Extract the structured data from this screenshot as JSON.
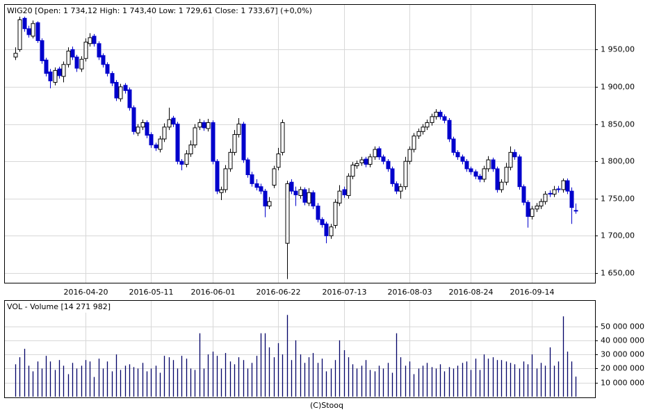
{
  "chart_data": [
    {
      "type": "candlestick",
      "title": "WIG20 [Open: 1 734,12  High: 1 743,40  Low: 1 729,61  Close: 1 733,67] (+0,0%)",
      "categories": [
        null,
        null,
        null,
        null,
        null,
        null,
        null,
        null,
        null,
        null,
        null,
        null,
        null,
        null,
        null,
        null,
        "2016-04-20",
        null,
        null,
        null,
        null,
        null,
        null,
        null,
        null,
        null,
        null,
        null,
        null,
        null,
        null,
        "2016-05-11",
        null,
        null,
        null,
        null,
        null,
        null,
        null,
        null,
        null,
        null,
        null,
        null,
        null,
        "2016-06-01",
        null,
        null,
        null,
        null,
        null,
        null,
        null,
        null,
        null,
        null,
        null,
        null,
        null,
        null,
        "2016-06-22",
        null,
        null,
        null,
        null,
        null,
        null,
        null,
        null,
        null,
        null,
        null,
        null,
        null,
        null,
        "2016-07-13",
        null,
        null,
        null,
        null,
        null,
        null,
        null,
        null,
        null,
        null,
        null,
        null,
        null,
        null,
        "2016-08-03",
        null,
        null,
        null,
        null,
        null,
        null,
        null,
        null,
        null,
        null,
        null,
        null,
        null,
        "2016-08-24",
        null,
        null,
        null,
        null,
        null,
        null,
        null,
        null,
        null,
        null,
        null,
        null,
        null,
        "2016-09-14",
        null,
        null,
        null,
        null,
        null,
        null,
        null,
        null,
        null,
        null
      ],
      "open": [
        1940,
        1950,
        1992,
        1978,
        1968,
        1986,
        1962,
        1936,
        1920,
        1906,
        1924,
        1914,
        1930,
        1950,
        1940,
        1924,
        1938,
        1958,
        1968,
        1958,
        1942,
        1930,
        1918,
        1906,
        1884,
        1902,
        1896,
        1872,
        1838,
        1846,
        1852,
        1836,
        1822,
        1816,
        1830,
        1846,
        1858,
        1850,
        1800,
        1796,
        1810,
        1822,
        1846,
        1852,
        1844,
        1852,
        1800,
        1758,
        1762,
        1790,
        1812,
        1836,
        1850,
        1802,
        1782,
        1770,
        1766,
        1760,
        1740,
        1768,
        1792,
        1812,
        1690,
        1772,
        1760,
        1754,
        1762,
        1744,
        1758,
        1740,
        1722,
        1716,
        1700,
        1714,
        1744,
        1762,
        1754,
        1780,
        1794,
        1798,
        1803,
        1796,
        1806,
        1817,
        1806,
        1800,
        1790,
        1770,
        1760,
        1766,
        1800,
        1816,
        1834,
        1840,
        1846,
        1852,
        1860,
        1866,
        1860,
        1855,
        1830,
        1812,
        1806,
        1800,
        1790,
        1786,
        1780,
        1776,
        1790,
        1802,
        1790,
        1762,
        1772,
        1792,
        1812,
        1806,
        1766,
        1745,
        1726,
        1736,
        1740,
        1746,
        1757,
        1756,
        1763,
        1762,
        1774,
        1760,
        1734.12
      ],
      "high": [
        1953,
        1995,
        1995,
        1982,
        1989,
        1988,
        1965,
        1939,
        1924,
        1926,
        1927,
        1934,
        1953,
        1954,
        1943,
        1941,
        1965,
        1972,
        1971,
        1961,
        1945,
        1933,
        1921,
        1909,
        1904,
        1905,
        1899,
        1875,
        1850,
        1856,
        1855,
        1839,
        1825,
        1834,
        1851,
        1872,
        1861,
        1853,
        1803,
        1815,
        1828,
        1850,
        1857,
        1855,
        1857,
        1855,
        1803,
        1766,
        1795,
        1817,
        1842,
        1858,
        1853,
        1805,
        1786,
        1776,
        1770,
        1763,
        1752,
        1794,
        1818,
        1856,
        1774,
        1776,
        1766,
        1766,
        1765,
        1764,
        1761,
        1744,
        1725,
        1719,
        1716,
        1749,
        1768,
        1766,
        1784,
        1799,
        1801,
        1806,
        1806,
        1810,
        1820,
        1820,
        1809,
        1803,
        1793,
        1773,
        1770,
        1806,
        1820,
        1838,
        1844,
        1850,
        1856,
        1864,
        1870,
        1869,
        1863,
        1858,
        1833,
        1815,
        1809,
        1803,
        1793,
        1789,
        1783,
        1794,
        1807,
        1805,
        1793,
        1776,
        1798,
        1820,
        1816,
        1809,
        1769,
        1748,
        1740,
        1744,
        1750,
        1760,
        1761,
        1767,
        1767,
        1777,
        1777,
        1765,
        1743.4
      ],
      "low": [
        1936,
        1947,
        1974,
        1966,
        1965,
        1959,
        1931,
        1914,
        1898,
        1902,
        1911,
        1906,
        1926,
        1936,
        1920,
        1920,
        1934,
        1954,
        1954,
        1936,
        1926,
        1914,
        1901,
        1881,
        1880,
        1891,
        1868,
        1836,
        1834,
        1842,
        1831,
        1818,
        1814,
        1812,
        1826,
        1842,
        1846,
        1796,
        1788,
        1792,
        1806,
        1818,
        1842,
        1841,
        1840,
        1796,
        1756,
        1748,
        1758,
        1786,
        1808,
        1832,
        1798,
        1778,
        1766,
        1761,
        1756,
        1725,
        1736,
        1764,
        1788,
        1808,
        1642,
        1756,
        1740,
        1750,
        1741,
        1740,
        1736,
        1718,
        1711,
        1690,
        1696,
        1710,
        1740,
        1751,
        1750,
        1776,
        1790,
        1794,
        1792,
        1792,
        1802,
        1802,
        1796,
        1786,
        1766,
        1756,
        1750,
        1762,
        1796,
        1812,
        1830,
        1836,
        1842,
        1848,
        1856,
        1856,
        1851,
        1826,
        1808,
        1802,
        1796,
        1786,
        1782,
        1776,
        1772,
        1772,
        1786,
        1786,
        1758,
        1758,
        1768,
        1788,
        1802,
        1762,
        1741,
        1711,
        1722,
        1732,
        1736,
        1742,
        1752,
        1752,
        1758,
        1758,
        1756,
        1716,
        1729.61
      ],
      "close": [
        1945,
        1990,
        1978,
        1970,
        1985,
        1962,
        1935,
        1918,
        1908,
        1922,
        1915,
        1930,
        1948,
        1940,
        1925,
        1937,
        1960,
        1966,
        1958,
        1940,
        1930,
        1918,
        1905,
        1885,
        1900,
        1895,
        1872,
        1840,
        1846,
        1852,
        1835,
        1822,
        1818,
        1830,
        1846,
        1856,
        1850,
        1800,
        1796,
        1810,
        1822,
        1845,
        1852,
        1845,
        1852,
        1800,
        1760,
        1762,
        1790,
        1812,
        1836,
        1850,
        1802,
        1782,
        1770,
        1765,
        1760,
        1740,
        1746,
        1790,
        1810,
        1852,
        1770,
        1760,
        1755,
        1762,
        1745,
        1758,
        1740,
        1722,
        1715,
        1700,
        1712,
        1745,
        1760,
        1755,
        1780,
        1795,
        1797,
        1802,
        1796,
        1806,
        1816,
        1806,
        1800,
        1790,
        1770,
        1760,
        1766,
        1800,
        1816,
        1834,
        1840,
        1846,
        1852,
        1860,
        1866,
        1860,
        1855,
        1830,
        1812,
        1806,
        1800,
        1790,
        1786,
        1780,
        1776,
        1790,
        1802,
        1790,
        1762,
        1772,
        1792,
        1812,
        1806,
        1766,
        1745,
        1726,
        1736,
        1740,
        1746,
        1756,
        1756,
        1762,
        1762,
        1774,
        1760,
        1738,
        1733.67
      ],
      "up_color": "#ffffff",
      "down_color": "#0000cc",
      "ylim": [
        1637,
        2010
      ],
      "yticks": [
        {
          "value": 1650,
          "label": "1 650,00"
        },
        {
          "value": 1700,
          "label": "1 700,00"
        },
        {
          "value": 1750,
          "label": "1 750,00"
        },
        {
          "value": 1800,
          "label": "1 800,00"
        },
        {
          "value": 1850,
          "label": "1 850,00"
        },
        {
          "value": 1900,
          "label": "1 900,00"
        },
        {
          "value": 1950,
          "label": "1 950,00"
        }
      ],
      "grid": true
    },
    {
      "type": "bar",
      "title": "VOL - Volume [14 271 982]",
      "values": [
        23000000,
        28000000,
        34000000,
        22000000,
        18000000,
        25000000,
        20000000,
        29000000,
        25000000,
        19000000,
        26000000,
        22000000,
        16000000,
        24000000,
        20000000,
        22000000,
        26000000,
        25000000,
        14000000,
        27000000,
        20000000,
        25000000,
        18000000,
        30000000,
        19000000,
        22000000,
        23000000,
        21000000,
        20000000,
        24000000,
        18000000,
        20000000,
        22000000,
        17000000,
        29000000,
        28000000,
        26000000,
        20000000,
        29000000,
        27000000,
        20000000,
        19000000,
        45000000,
        20000000,
        30000000,
        32000000,
        29000000,
        20000000,
        31000000,
        25000000,
        23000000,
        28000000,
        26000000,
        20000000,
        24000000,
        29000000,
        45000000,
        45000000,
        35000000,
        28000000,
        38000000,
        30000000,
        58000000,
        26000000,
        40000000,
        30000000,
        24000000,
        28000000,
        31000000,
        24000000,
        27000000,
        18000000,
        20000000,
        26000000,
        40000000,
        33000000,
        28000000,
        23000000,
        20000000,
        22000000,
        26000000,
        19000000,
        18000000,
        22000000,
        20000000,
        24000000,
        17000000,
        45000000,
        28000000,
        22000000,
        25000000,
        16000000,
        20000000,
        22000000,
        24000000,
        21000000,
        20000000,
        23000000,
        18000000,
        21000000,
        20000000,
        22000000,
        24000000,
        25000000,
        19000000,
        27000000,
        19000000,
        30000000,
        27000000,
        28000000,
        26000000,
        26000000,
        25000000,
        24000000,
        23000000,
        20000000,
        25000000,
        23000000,
        30000000,
        20000000,
        24000000,
        22000000,
        35000000,
        22000000,
        25000000,
        57000000,
        32000000,
        25000000,
        14271982
      ],
      "color": "#000066",
      "ylim": [
        0,
        68000000
      ],
      "yticks": [
        {
          "value": 10000000,
          "label": "10 000 000"
        },
        {
          "value": 20000000,
          "label": "20 000 000"
        },
        {
          "value": 30000000,
          "label": "30 000 000"
        },
        {
          "value": 40000000,
          "label": "40 000 000"
        },
        {
          "value": 50000000,
          "label": "50 000 000"
        }
      ],
      "grid": true
    }
  ],
  "footer": "(C)Stooq"
}
